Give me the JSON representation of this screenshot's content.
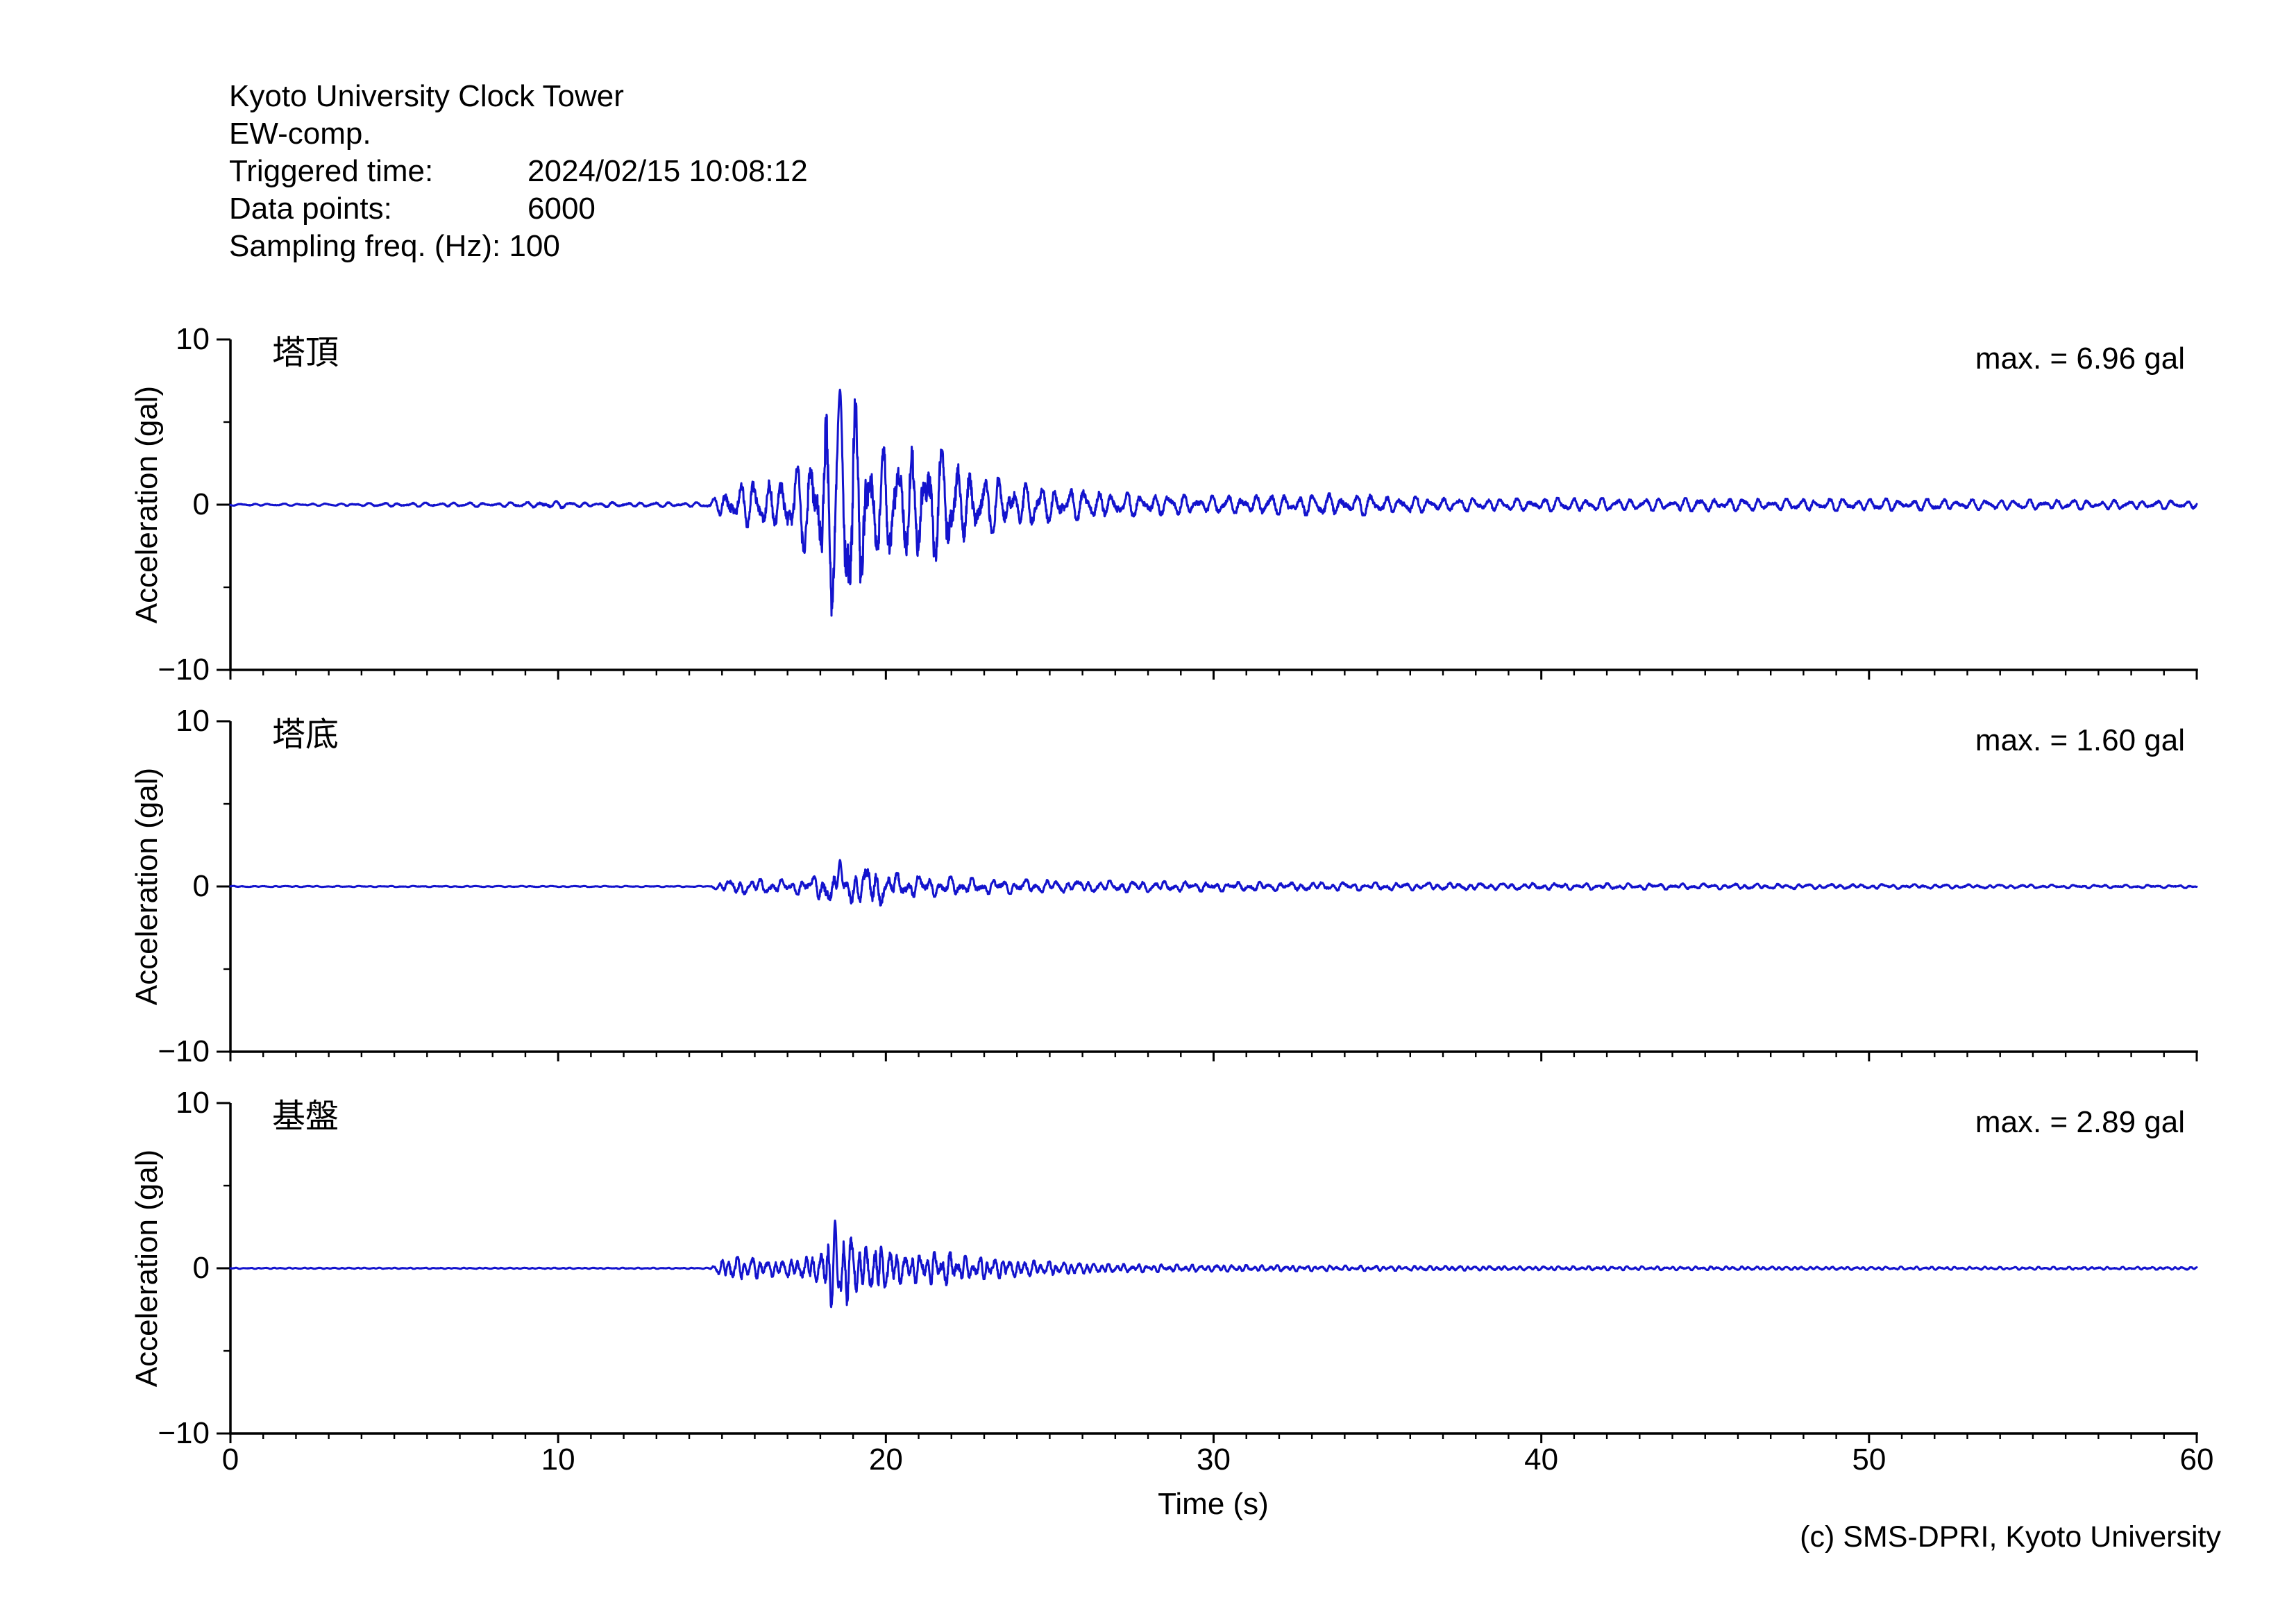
{
  "header": {
    "title": "Kyoto University Clock Tower",
    "component": "EW-comp.",
    "triggered_label": "Triggered time:",
    "triggered_value": "2024/02/15 10:08:12",
    "datapoints_label": "Data points:",
    "datapoints_value": "6000",
    "sampling_line": "Sampling freq. (Hz): 100"
  },
  "footer": {
    "credit": "(c) SMS-DPRI, Kyoto University"
  },
  "colors": {
    "trace": "#1313cd",
    "axis": "#000000",
    "text": "#000000",
    "background": "#ffffff"
  },
  "axes": {
    "xlabel": "Time (s)",
    "ylabel": "Acceleration (gal)",
    "x_ticks": [
      0,
      10,
      20,
      30,
      40,
      50,
      60
    ],
    "x_tick_labels": [
      "0",
      "10",
      "20",
      "30",
      "40",
      "50",
      "60"
    ],
    "x_minor_step_s": 1,
    "y_ticks": [
      10,
      0,
      -10
    ],
    "y_tick_labels": [
      "10",
      "0",
      "−10"
    ],
    "y_minor_ticks": [
      5,
      -5
    ],
    "xlim": [
      0,
      60
    ],
    "ylim": [
      -10,
      10
    ],
    "grid": false
  },
  "chart_data": [
    {
      "type": "line",
      "name": "塔頂",
      "max_label": "max. = 6.96 gal",
      "max_gal": 6.96,
      "onset_time_s": 15.2,
      "peak_time_s": 18.6,
      "xlim": [
        0,
        60
      ],
      "ylim": [
        -10,
        10
      ],
      "sampling_hz": 100,
      "n_points": 6000,
      "freqs_hz": [
        2.3,
        3.5,
        1.6
      ],
      "mix": [
        0.72,
        0.38,
        0.2
      ],
      "noise": 0.5,
      "seed": 11,
      "envelope": {
        "t": [
          0,
          3,
          5,
          9,
          9.6,
          10.6,
          14.6,
          15.1,
          15.35,
          15.8,
          16.6,
          17.2,
          17.8,
          18.25,
          18.6,
          19.0,
          19.5,
          20.2,
          21.0,
          21.7,
          22.4,
          23.2,
          24.2,
          25.2,
          26.5,
          28,
          30,
          32,
          34,
          35.5,
          37,
          39,
          41,
          43,
          45,
          47,
          50,
          53,
          56,
          60
        ],
        "a": [
          0.05,
          0.06,
          0.1,
          0.12,
          0.22,
          0.13,
          0.12,
          0.8,
          1.1,
          1.2,
          1.35,
          1.7,
          3.3,
          5.6,
          7.0,
          5.8,
          3.6,
          2.7,
          3.2,
          2.9,
          2.0,
          1.5,
          1.15,
          0.9,
          0.72,
          0.58,
          0.47,
          0.52,
          0.62,
          0.47,
          0.37,
          0.32,
          0.37,
          0.31,
          0.36,
          0.31,
          0.33,
          0.28,
          0.26,
          0.22
        ]
      }
    },
    {
      "type": "line",
      "name": "塔底",
      "max_label": "max. = 1.60 gal",
      "max_gal": 1.6,
      "onset_time_s": 15.2,
      "peak_time_s": 18.6,
      "xlim": [
        0,
        60
      ],
      "ylim": [
        -10,
        10
      ],
      "sampling_hz": 100,
      "n_points": 6000,
      "freqs_hz": [
        3.1,
        1.25,
        4.8
      ],
      "mix": [
        0.6,
        0.45,
        0.25
      ],
      "noise": 0.5,
      "seed": 23,
      "envelope": {
        "t": [
          0,
          14.6,
          15.1,
          15.4,
          16,
          17,
          17.8,
          18.3,
          18.6,
          19.0,
          19.6,
          20.3,
          21,
          22,
          23,
          24.5,
          26,
          28,
          30,
          33,
          36,
          40,
          44,
          48,
          52,
          56,
          60
        ],
        "a": [
          0.03,
          0.03,
          0.3,
          0.38,
          0.42,
          0.36,
          0.5,
          1.0,
          1.55,
          1.0,
          1.1,
          0.7,
          0.55,
          0.5,
          0.4,
          0.35,
          0.3,
          0.28,
          0.25,
          0.22,
          0.2,
          0.17,
          0.15,
          0.13,
          0.11,
          0.09,
          0.08
        ]
      }
    },
    {
      "type": "line",
      "name": "基盤",
      "max_label": "max. = 2.89 gal",
      "max_gal": 2.89,
      "onset_time_s": 15.2,
      "peak_time_s": 18.45,
      "xlim": [
        0,
        60
      ],
      "ylim": [
        -10,
        10
      ],
      "sampling_hz": 100,
      "n_points": 6000,
      "freqs_hz": [
        4.3,
        2.3,
        6.2
      ],
      "mix": [
        0.7,
        0.4,
        0.25
      ],
      "noise": 0.5,
      "seed": 37,
      "envelope": {
        "t": [
          0,
          14.6,
          15.1,
          15.35,
          15.9,
          16.6,
          17.4,
          18.1,
          18.45,
          18.8,
          19.3,
          19.8,
          20.3,
          21,
          21.8,
          22.5,
          23.5,
          24.5,
          25.5,
          27,
          29,
          32,
          36,
          40,
          45,
          50,
          55,
          60
        ],
        "a": [
          0.03,
          0.03,
          0.5,
          0.58,
          0.55,
          0.42,
          0.5,
          0.85,
          2.8,
          1.9,
          1.0,
          1.45,
          0.8,
          0.75,
          0.88,
          0.6,
          0.5,
          0.4,
          0.3,
          0.22,
          0.18,
          0.15,
          0.12,
          0.1,
          0.09,
          0.08,
          0.07,
          0.07
        ]
      }
    }
  ]
}
